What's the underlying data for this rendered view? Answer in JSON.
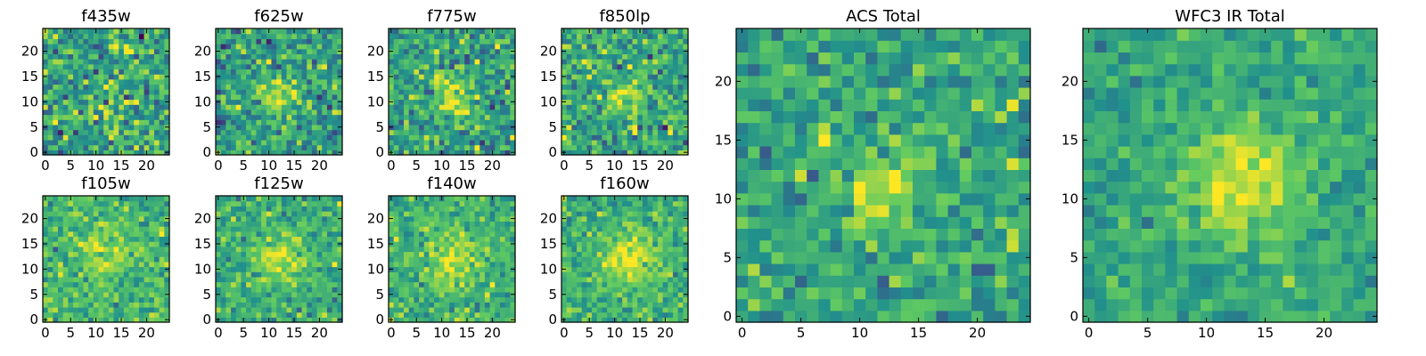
{
  "figure": {
    "description_type": "grid of image-cutout heatmaps"
  },
  "colormap": {
    "name": "viridis",
    "stops": [
      "#440154",
      "#3b528b",
      "#21918c",
      "#5ec962",
      "#fde725"
    ]
  },
  "chart_data": [
    {
      "type": "heatmap",
      "title": "f435w",
      "grid_size": 25,
      "xticks": [
        0,
        5,
        10,
        15,
        20
      ],
      "yticks": [
        0,
        5,
        10,
        15,
        20
      ],
      "xlim": [
        0,
        24
      ],
      "ylim": [
        0,
        24
      ],
      "signal": {
        "cx": 12,
        "cy": 11,
        "sigma": 3,
        "amp": 0.05
      },
      "noise": 0.6,
      "mean": 0.58,
      "seed": 11
    },
    {
      "type": "heatmap",
      "title": "f625w",
      "grid_size": 25,
      "xticks": [
        0,
        5,
        10,
        15,
        20
      ],
      "yticks": [
        0,
        5,
        10,
        15,
        20
      ],
      "xlim": [
        0,
        24
      ],
      "ylim": [
        0,
        24
      ],
      "signal": {
        "cx": 12,
        "cy": 11,
        "sigma": 3,
        "amp": 0.25
      },
      "noise": 0.55,
      "mean": 0.55,
      "seed": 23
    },
    {
      "type": "heatmap",
      "title": "f775w",
      "grid_size": 25,
      "xticks": [
        0,
        5,
        10,
        15,
        20
      ],
      "yticks": [
        0,
        5,
        10,
        15,
        20
      ],
      "xlim": [
        0,
        24
      ],
      "ylim": [
        0,
        24
      ],
      "signal": {
        "cx": 12,
        "cy": 11,
        "sigma": 3,
        "amp": 0.3
      },
      "noise": 0.55,
      "mean": 0.58,
      "seed": 37
    },
    {
      "type": "heatmap",
      "title": "f850lp",
      "grid_size": 25,
      "xticks": [
        0,
        5,
        10,
        15,
        20
      ],
      "yticks": [
        0,
        5,
        10,
        15,
        20
      ],
      "xlim": [
        0,
        24
      ],
      "ylim": [
        0,
        24
      ],
      "signal": {
        "cx": 12,
        "cy": 11,
        "sigma": 3,
        "amp": 0.25
      },
      "noise": 0.55,
      "mean": 0.6,
      "seed": 41
    },
    {
      "type": "heatmap",
      "title": "f105w",
      "grid_size": 25,
      "xticks": [
        0,
        5,
        10,
        15,
        20
      ],
      "yticks": [
        0,
        5,
        10,
        15,
        20
      ],
      "xlim": [
        0,
        24
      ],
      "ylim": [
        0,
        24
      ],
      "signal": {
        "cx": 12,
        "cy": 12,
        "sigma": 3.5,
        "amp": 0.2
      },
      "noise": 0.4,
      "mean": 0.66,
      "seed": 53
    },
    {
      "type": "heatmap",
      "title": "f125w",
      "grid_size": 25,
      "xticks": [
        0,
        5,
        10,
        15,
        20
      ],
      "yticks": [
        0,
        5,
        10,
        15,
        20
      ],
      "xlim": [
        0,
        24
      ],
      "ylim": [
        0,
        24
      ],
      "signal": {
        "cx": 12,
        "cy": 12,
        "sigma": 3.5,
        "amp": 0.3
      },
      "noise": 0.4,
      "mean": 0.62,
      "seed": 67
    },
    {
      "type": "heatmap",
      "title": "f140w",
      "grid_size": 25,
      "xticks": [
        0,
        5,
        10,
        15,
        20
      ],
      "yticks": [
        0,
        5,
        10,
        15,
        20
      ],
      "xlim": [
        0,
        24
      ],
      "ylim": [
        0,
        24
      ],
      "signal": {
        "cx": 12,
        "cy": 12,
        "sigma": 3.5,
        "amp": 0.3
      },
      "noise": 0.4,
      "mean": 0.64,
      "seed": 79
    },
    {
      "type": "heatmap",
      "title": "f160w",
      "grid_size": 25,
      "xticks": [
        0,
        5,
        10,
        15,
        20
      ],
      "yticks": [
        0,
        5,
        10,
        15,
        20
      ],
      "xlim": [
        0,
        24
      ],
      "ylim": [
        0,
        24
      ],
      "signal": {
        "cx": 13,
        "cy": 12,
        "sigma": 3.5,
        "amp": 0.35
      },
      "noise": 0.4,
      "mean": 0.64,
      "seed": 83
    },
    {
      "type": "heatmap",
      "title": "ACS Total",
      "grid_size": 25,
      "xticks": [
        0,
        5,
        10,
        15,
        20
      ],
      "yticks": [
        0,
        5,
        10,
        15,
        20
      ],
      "xlim": [
        0,
        24
      ],
      "ylim": [
        0,
        24
      ],
      "signal": {
        "cx": 12,
        "cy": 11,
        "sigma": 2.5,
        "amp": 0.35
      },
      "noise": 0.45,
      "mean": 0.58,
      "seed": 97
    },
    {
      "type": "heatmap",
      "title": "WFC3 IR Total",
      "grid_size": 25,
      "xticks": [
        0,
        5,
        10,
        15,
        20
      ],
      "yticks": [
        0,
        5,
        10,
        15,
        20
      ],
      "xlim": [
        0,
        24
      ],
      "ylim": [
        0,
        24
      ],
      "signal": {
        "cx": 13,
        "cy": 12,
        "sigma": 3.5,
        "amp": 0.35
      },
      "noise": 0.3,
      "mean": 0.6,
      "seed": 101
    }
  ]
}
